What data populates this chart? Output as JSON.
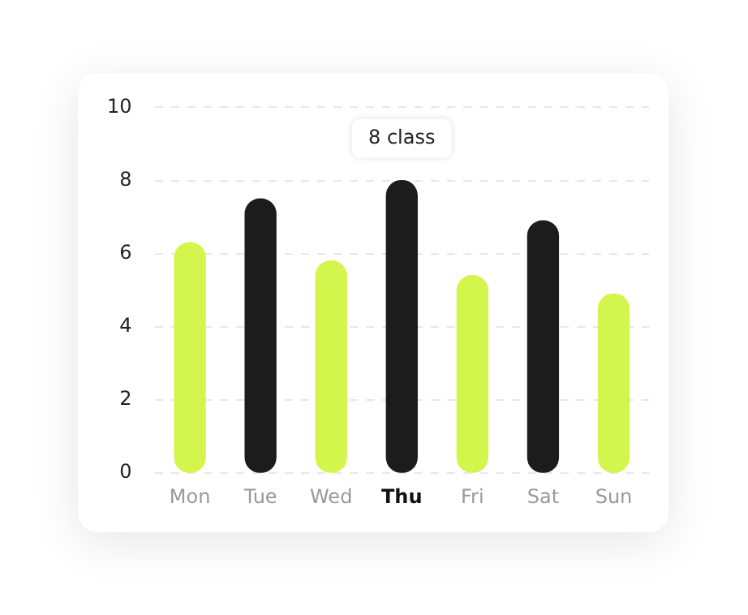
{
  "chart_data": {
    "type": "bar",
    "categories": [
      "Mon",
      "Tue",
      "Wed",
      "Thu",
      "Fri",
      "Sat",
      "Sun"
    ],
    "values": [
      6.3,
      7.5,
      5.8,
      8,
      5.4,
      6.9,
      4.9
    ],
    "colors": [
      "#d4f54c",
      "#1c1c1c",
      "#d4f54c",
      "#1c1c1c",
      "#d4f54c",
      "#1c1c1c",
      "#d4f54c"
    ],
    "value_labels": [
      null,
      null,
      null,
      "8 class",
      null,
      null,
      null
    ],
    "ylim": [
      0,
      10
    ],
    "yticks": [
      0,
      2,
      4,
      6,
      8,
      10
    ],
    "grid": "y"
  }
}
